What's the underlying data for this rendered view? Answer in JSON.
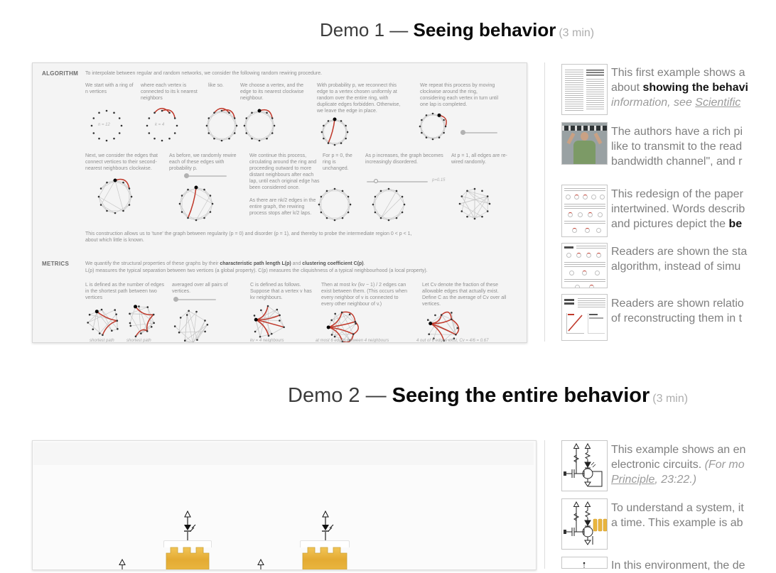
{
  "colors": {
    "accent_red": "#c0392b",
    "waveform_yellow": "#e9b53e",
    "waveform_yellow_dark": "#dfa32f"
  },
  "demo1": {
    "title": {
      "prefix": "Demo 1 — ",
      "bold": "Seeing behavior",
      "min": "(3 min)"
    },
    "notes": [
      {
        "l1": "This first example shows a",
        "l2a": "about ",
        "l2b": "showing the behavi",
        "l3a": "information, see ",
        "l3b": "Scientific"
      },
      {
        "l1": "The authors have a rich pi",
        "l2": "like to transmit to the read",
        "l3": "bandwidth channel\", and r"
      },
      {
        "l1": "This redesign of the paper",
        "l2": "intertwined. Words describ",
        "l3a": "and pictures depict the ",
        "l3b": "be"
      },
      {
        "l1": "Readers are shown the sta",
        "l2": "algorithm, instead of simu"
      },
      {
        "l1": "Readers are shown relatio",
        "l2": "of reconstructing them in t"
      }
    ]
  },
  "demo2": {
    "title": {
      "prefix": "Demo 2 — ",
      "bold": "Seeing the entire behavior",
      "min": "(3 min)"
    },
    "notes": [
      {
        "l1": "This example shows an en",
        "l2a": "electronic circuits. ",
        "l2b": "(For mo",
        "l3a": "Principle",
        "l3b": ", 23:22.)"
      },
      {
        "l1": "To understand a system, it",
        "l2": "a time. This example is ab"
      },
      {
        "l1": "In this environment, the de"
      }
    ]
  },
  "figure1": {
    "algorithm_label": "ALGORITHM",
    "metrics_label": "METRICS",
    "intro": "To interpolate between regular and random networks, we consider the following random rewiring procedure.",
    "r1c1": "We start with a ring of n vertices",
    "r1c1_cap": "n = 12",
    "r1c2": "where each vertex is connected to its k nearest neighbors",
    "r1c2_cap": "k = 4",
    "r1c3": "like so.",
    "r1c4": "We choose a vertex, and the edge to its nearest clockwise neighbour.",
    "r1c5": "With probability p, we reconnect this edge to a vertex chosen uniformly at random over the entire ring, with duplicate edges forbidden. Otherwise, we leave the edge in place.",
    "r1c6": "We repeat this process by moving clockwise around the ring, considering each vertex in turn until one lap is completed.",
    "r2c1": "Next, we consider the edges that connect vertices to their second-nearest neighbours clockwise.",
    "r2c2": "As before, we randomly rewire each of these edges with probability p.",
    "r2c3a": "We continue this process, circulating around the ring and proceeding outward to more distant neighbours after each lap, until each original edge has been considered once.",
    "r2c3b": "As there are nk/2 edges in the entire graph, the rewiring process stops after k/2 laps.",
    "r2c4": "For p = 0, the ring is unchanged.",
    "r2c5": "As p increases, the graph becomes increasingly disordered.",
    "r2c5_slider_label": "p=0.15",
    "r2c6": "At p = 1, all edges are re-wired randomly.",
    "tune1": "This construction allows us to 'tune' the graph between regularity (p = 0) and disorder (p = 1), and thereby to probe the intermediate region 0 < p < 1,",
    "tune2": "about which little is known.",
    "metrics_1a": "We quantify the structural properties of these graphs by their ",
    "metrics_1b": "characteristic path length L(p)",
    "metrics_1c": " and ",
    "metrics_1d": "clustering coefficient C(p)",
    "metrics_1e": ".",
    "metrics_2": "L(p) measures the typical separation between two vertices (a global property). C(p) measures the cliquishness of a typical neighbourhood (a local property).",
    "r3c1": "L is defined as the number of edges in the shortest path between two vertices",
    "r3c2": "averaged over all pairs of vertices.",
    "r3c3": "C is defined as follows. Suppose that a vertex v has kv neighbours.",
    "r3c4": "Then at most kv (kv − 1) / 2 edges can exist between them. (This occurs when every neighbor of v is connected to every other neighbour of v.)",
    "r3c5": "Let Cv denote the fraction of these allowable edges that actually exist. Define C as the average of Cv over all vertices.",
    "cap1": "shortest path",
    "cap2": "shortest path",
    "cap3": "kv = 4 neighbours",
    "cap4": "at most 6 edges between 4 neighbours",
    "cap5": "4 out of 6 edges exist, Cv = 4/6 = 0.67"
  }
}
